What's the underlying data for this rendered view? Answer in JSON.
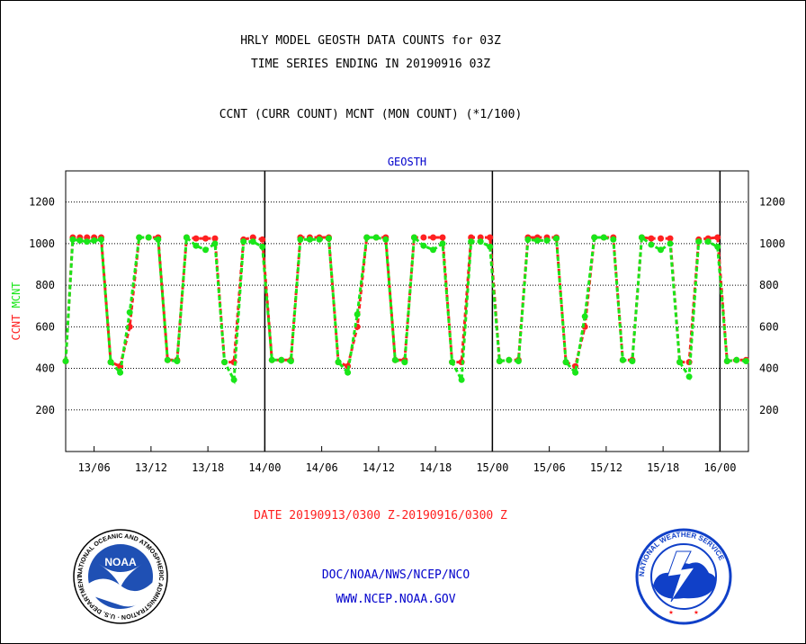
{
  "header": {
    "line1": "HRLY MODEL GEOSTH DATA COUNTS for 03Z",
    "line2": "TIME SERIES ENDING IN 20190916 03Z",
    "line3": "CCNT (CURR COUNT) MCNT (MON COUNT) (*1/100)"
  },
  "footer": {
    "date_range": "DATE 20190913/0300 Z-20190916/0300 Z",
    "org": "DOC/NOAA/NWS/NCEP/NCO",
    "url": "WWW.NCEP.NOAA.GOV"
  },
  "logos": {
    "noaa": {
      "center_text": "NOAA",
      "ring_text": "NATIONAL OCEANIC AND ATMOSPHERIC ADMINISTRATION · U.S. DEPARTMENT OF COMMERCE"
    },
    "nws": {
      "ring_text": "NATIONAL WEATHER SERVICE"
    }
  },
  "colors": {
    "ccnt": "#ff2020",
    "mcnt": "#19e619",
    "label_blue": "#0000cc",
    "grid": "#000000",
    "noaa_blue": "#1f50b4",
    "nws_blue": "#1040c8"
  },
  "chart_data": {
    "type": "line",
    "title": "GEOSTH",
    "xlabel": "",
    "ylabel_series": [
      {
        "text": "CCNT",
        "color": "#ff2020"
      },
      {
        "text": "MCNT",
        "color": "#19e619"
      }
    ],
    "x_unit": "hours from 20190913/0300 Z",
    "xlim": [
      0,
      72
    ],
    "ylim": [
      0,
      1350
    ],
    "grid": "horizontal dotted",
    "yticks": [
      200,
      400,
      600,
      800,
      1000,
      1200
    ],
    "xticks": [
      {
        "x": 3,
        "label": "13/06"
      },
      {
        "x": 9,
        "label": "13/12"
      },
      {
        "x": 15,
        "label": "13/18"
      },
      {
        "x": 21,
        "label": "14/00"
      },
      {
        "x": 27,
        "label": "14/06"
      },
      {
        "x": 33,
        "label": "14/12"
      },
      {
        "x": 39,
        "label": "14/18"
      },
      {
        "x": 45,
        "label": "15/00"
      },
      {
        "x": 51,
        "label": "15/06"
      },
      {
        "x": 57,
        "label": "15/12"
      },
      {
        "x": 63,
        "label": "15/18"
      },
      {
        "x": 69,
        "label": "16/00"
      }
    ],
    "day_boundaries": [
      21,
      45,
      69
    ],
    "series": [
      {
        "name": "CCNT",
        "color": "#ff2020",
        "points": [
          [
            0,
            435
          ],
          [
            0.75,
            1030
          ],
          [
            1.5,
            1030
          ],
          [
            2.25,
            1030
          ],
          [
            3,
            1030
          ],
          [
            3.75,
            1030
          ],
          [
            4.75,
            430
          ],
          [
            5.75,
            410
          ],
          [
            6.75,
            600
          ],
          [
            7.75,
            1030
          ],
          [
            8.75,
            1030
          ],
          [
            9.75,
            1030
          ],
          [
            10.75,
            440
          ],
          [
            11.75,
            440
          ],
          [
            12.75,
            1030
          ],
          [
            13.75,
            1025
          ],
          [
            14.75,
            1025
          ],
          [
            15.75,
            1025
          ],
          [
            16.75,
            430
          ],
          [
            17.75,
            430
          ],
          [
            18.75,
            1020
          ],
          [
            19.75,
            1030
          ],
          [
            20.75,
            1020
          ],
          [
            21.75,
            440
          ],
          [
            22.75,
            440
          ],
          [
            23.75,
            440
          ],
          [
            24.75,
            1030
          ],
          [
            25.75,
            1030
          ],
          [
            26.75,
            1030
          ],
          [
            27.75,
            1030
          ],
          [
            28.75,
            430
          ],
          [
            29.75,
            410
          ],
          [
            30.75,
            600
          ],
          [
            31.75,
            1030
          ],
          [
            32.75,
            1030
          ],
          [
            33.75,
            1030
          ],
          [
            34.75,
            440
          ],
          [
            35.75,
            440
          ],
          [
            36.75,
            1030
          ],
          [
            37.75,
            1030
          ],
          [
            38.75,
            1030
          ],
          [
            39.75,
            1030
          ],
          [
            40.75,
            430
          ],
          [
            41.75,
            430
          ],
          [
            42.75,
            1030
          ],
          [
            43.75,
            1030
          ],
          [
            44.75,
            1030
          ],
          [
            45.75,
            435
          ],
          [
            46.75,
            440
          ],
          [
            47.75,
            440
          ],
          [
            48.75,
            1030
          ],
          [
            49.75,
            1030
          ],
          [
            50.75,
            1030
          ],
          [
            51.75,
            1030
          ],
          [
            52.75,
            430
          ],
          [
            53.75,
            410
          ],
          [
            54.75,
            600
          ],
          [
            55.75,
            1030
          ],
          [
            56.75,
            1030
          ],
          [
            57.75,
            1030
          ],
          [
            58.75,
            440
          ],
          [
            59.75,
            440
          ],
          [
            60.75,
            1030
          ],
          [
            61.75,
            1025
          ],
          [
            62.75,
            1025
          ],
          [
            63.75,
            1025
          ],
          [
            64.75,
            430
          ],
          [
            65.75,
            430
          ],
          [
            66.75,
            1020
          ],
          [
            67.75,
            1025
          ],
          [
            68.75,
            1030
          ],
          [
            69.75,
            435
          ],
          [
            70.75,
            440
          ],
          [
            71.75,
            440
          ]
        ]
      },
      {
        "name": "MCNT",
        "color": "#19e619",
        "points": [
          [
            0,
            435
          ],
          [
            0.75,
            1020
          ],
          [
            1.5,
            1015
          ],
          [
            2.25,
            1010
          ],
          [
            3,
            1015
          ],
          [
            3.75,
            1020
          ],
          [
            4.75,
            430
          ],
          [
            5.75,
            380
          ],
          [
            6.75,
            670
          ],
          [
            7.75,
            1030
          ],
          [
            8.75,
            1030
          ],
          [
            9.75,
            1020
          ],
          [
            10.75,
            440
          ],
          [
            11.75,
            435
          ],
          [
            12.75,
            1030
          ],
          [
            13.75,
            990
          ],
          [
            14.75,
            970
          ],
          [
            15.75,
            1000
          ],
          [
            16.75,
            430
          ],
          [
            17.75,
            345
          ],
          [
            18.75,
            1010
          ],
          [
            19.75,
            1010
          ],
          [
            20.75,
            985
          ],
          [
            21.75,
            440
          ],
          [
            22.75,
            440
          ],
          [
            23.75,
            435
          ],
          [
            24.75,
            1020
          ],
          [
            25.75,
            1020
          ],
          [
            26.75,
            1020
          ],
          [
            27.75,
            1025
          ],
          [
            28.75,
            430
          ],
          [
            29.75,
            380
          ],
          [
            30.75,
            660
          ],
          [
            31.75,
            1030
          ],
          [
            32.75,
            1030
          ],
          [
            33.75,
            1020
          ],
          [
            34.75,
            440
          ],
          [
            35.75,
            430
          ],
          [
            36.75,
            1030
          ],
          [
            37.75,
            990
          ],
          [
            38.75,
            970
          ],
          [
            39.75,
            1000
          ],
          [
            40.75,
            430
          ],
          [
            41.75,
            345
          ],
          [
            42.75,
            1010
          ],
          [
            43.75,
            1010
          ],
          [
            44.75,
            985
          ],
          [
            45.75,
            435
          ],
          [
            46.75,
            440
          ],
          [
            47.75,
            435
          ],
          [
            48.75,
            1020
          ],
          [
            49.75,
            1015
          ],
          [
            50.75,
            1015
          ],
          [
            51.75,
            1025
          ],
          [
            52.75,
            430
          ],
          [
            53.75,
            380
          ],
          [
            54.75,
            650
          ],
          [
            55.75,
            1030
          ],
          [
            56.75,
            1030
          ],
          [
            57.75,
            1020
          ],
          [
            58.75,
            440
          ],
          [
            59.75,
            435
          ],
          [
            60.75,
            1030
          ],
          [
            61.75,
            995
          ],
          [
            62.75,
            970
          ],
          [
            63.75,
            1000
          ],
          [
            64.75,
            430
          ],
          [
            65.75,
            360
          ],
          [
            66.75,
            1010
          ],
          [
            67.75,
            1010
          ],
          [
            68.75,
            985
          ],
          [
            69.75,
            435
          ],
          [
            70.75,
            440
          ],
          [
            71.75,
            435
          ]
        ]
      }
    ]
  }
}
